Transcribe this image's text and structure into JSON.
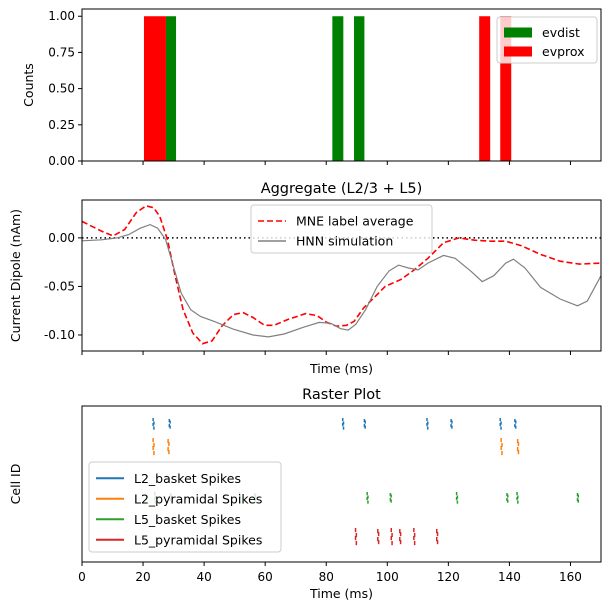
{
  "chart_data": [
    {
      "type": "bar",
      "title": "",
      "xlabel": "",
      "ylabel": "Counts",
      "xlim": [
        0,
        170
      ],
      "ylim": [
        0,
        1.05
      ],
      "yticks": [
        "0.00",
        "0.25",
        "0.50",
        "0.75",
        "1.00"
      ],
      "xticks": [
        0,
        20,
        40,
        60,
        80,
        100,
        120,
        140,
        160
      ],
      "legend_position": "top-right",
      "series": [
        {
          "name": "evdist",
          "color": "#008000",
          "bins": [
            [
              27.5,
              30.8,
              1
            ],
            [
              82.0,
              85.6,
              1
            ],
            [
              89.1,
              92.5,
              1
            ]
          ]
        },
        {
          "name": "evprox",
          "color": "#ff0000",
          "bins": [
            [
              20.3,
              27.5,
              1
            ],
            [
              130.1,
              133.7,
              1
            ],
            [
              137.0,
              140.6,
              1
            ]
          ]
        }
      ]
    },
    {
      "type": "line",
      "title": "Aggregate (L2/3 + L5)",
      "xlabel": "Time (ms)",
      "ylabel": "Current Dipole (nAm)",
      "xlim": [
        0,
        170
      ],
      "ylim": [
        -0.1165,
        0.039
      ],
      "yticks": [
        "0.00",
        "-0.05",
        "-0.10"
      ],
      "xticks": [
        0,
        20,
        40,
        60,
        80,
        100,
        120,
        140,
        160
      ],
      "legend_position": "top-center",
      "reference_line": {
        "y": 0,
        "style": "dotted",
        "color": "#000000"
      },
      "series": [
        {
          "name": "MNE label average",
          "color": "#ff0000",
          "style": "dashed",
          "x": [
            0,
            6.4,
            10.2,
            14,
            17.8,
            21,
            23.5,
            25.5,
            28,
            30.5,
            33.1,
            36.3,
            39.5,
            42.6,
            45.8,
            49.6,
            52.8,
            56,
            59.8,
            62.9,
            67.5,
            73.2,
            77,
            80.2,
            83.4,
            86.6,
            89.1,
            92.3,
            95.5,
            99.3,
            104.4,
            108.8,
            113.3,
            118.4,
            123.5,
            128.6,
            133.7,
            138.8,
            143.8,
            150.2,
            156.6,
            162.9,
            170
          ],
          "y": [
            0.017,
            0.007,
            0.002,
            0.0086,
            0.026,
            0.033,
            0.031,
            0.022,
            -0.002,
            -0.039,
            -0.074,
            -0.098,
            -0.109,
            -0.106,
            -0.091,
            -0.079,
            -0.077,
            -0.082,
            -0.09,
            -0.09,
            -0.084,
            -0.078,
            -0.08,
            -0.087,
            -0.091,
            -0.09,
            -0.086,
            -0.072,
            -0.062,
            -0.05,
            -0.043,
            -0.033,
            -0.021,
            -0.005,
            0.0,
            -0.0024,
            -0.0034,
            -0.0034,
            -0.008,
            -0.017,
            -0.024,
            -0.027,
            -0.026
          ]
        },
        {
          "name": "HNN simulation",
          "color": "#808080",
          "style": "solid",
          "x": [
            0,
            6.4,
            11.5,
            15.3,
            19.1,
            22.3,
            24.8,
            27.4,
            29.9,
            32.5,
            35.6,
            38.8,
            43.3,
            49.6,
            56,
            61.1,
            66.2,
            72.6,
            77.7,
            81.5,
            84.7,
            87.2,
            89.7,
            92.9,
            96.7,
            100.6,
            103.7,
            106.9,
            110.1,
            113.3,
            118.4,
            122.2,
            127.3,
            131.1,
            134.9,
            138.8,
            141.3,
            145.1,
            150.2,
            156.6,
            162.3,
            165.5,
            170
          ],
          "y": [
            -0.003,
            -0.002,
            0.0,
            0.0034,
            0.01,
            0.0137,
            0.01,
            -0.002,
            -0.029,
            -0.057,
            -0.074,
            -0.081,
            -0.086,
            -0.094,
            -0.1,
            -0.102,
            -0.099,
            -0.092,
            -0.087,
            -0.088,
            -0.0935,
            -0.095,
            -0.089,
            -0.074,
            -0.05,
            -0.034,
            -0.028,
            -0.031,
            -0.033,
            -0.026,
            -0.018,
            -0.021,
            -0.034,
            -0.045,
            -0.039,
            -0.026,
            -0.022,
            -0.031,
            -0.051,
            -0.063,
            -0.07,
            -0.065,
            -0.039
          ]
        }
      ]
    },
    {
      "type": "scatter",
      "title": "Raster Plot",
      "xlabel": "Time (ms)",
      "ylabel": "Cell ID",
      "xlim": [
        0,
        170
      ],
      "xticks": [
        0,
        20,
        40,
        60,
        80,
        100,
        120,
        140,
        160
      ],
      "legend_position": "lower-left",
      "series": [
        {
          "name": "L2_basket Spikes",
          "color": "#1f77b4",
          "times": [
            23.3,
            28.6,
            85.4,
            92.5,
            113,
            120.9,
            137,
            141.8
          ]
        },
        {
          "name": "L2_pyramidal Spikes",
          "color": "#ff7f0e",
          "times": [
            23.3,
            28.2,
            137.3,
            142.7
          ]
        },
        {
          "name": "L5_basket Spikes",
          "color": "#2ca02c",
          "times": [
            23.8,
            29,
            51.6,
            56.6,
            93.4,
            101,
            122.7,
            139.2,
            142.5,
            162.3
          ]
        },
        {
          "name": "L5_pyramidal Spikes",
          "color": "#d62728",
          "times": [
            89.6,
            96.9,
            101.3,
            104.1,
            108.7,
            116.2
          ]
        }
      ]
    }
  ]
}
